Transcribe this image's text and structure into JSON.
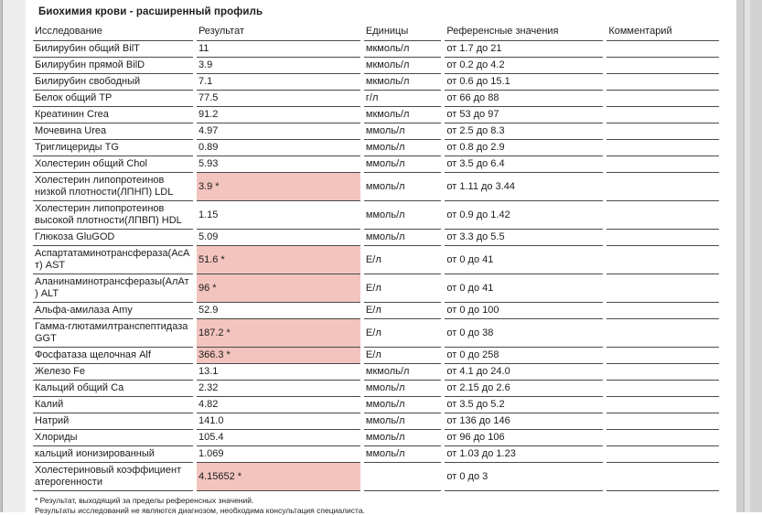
{
  "page": {
    "title": "Биохимия крови - расширенный профиль",
    "footnotes": [
      "* Результат, выходящий за пределы референсных значений.",
      "Результаты исследований не являются диагнозом, необходима консультация специалиста."
    ]
  },
  "colors": {
    "flag_highlight": "#f2c4bd",
    "row_line": "#4a4a4a",
    "text": "#1c1c1c"
  },
  "table": {
    "columns": [
      "Исследование",
      "Результат",
      "Единицы",
      "Референсные значения",
      "Комментарий"
    ],
    "rows": [
      {
        "name": "Билирубин общий BilT",
        "result": "11",
        "flagged": false,
        "units": "мкмоль/л",
        "reference": "от 1.7 до 21",
        "comment": ""
      },
      {
        "name": "Билирубин прямой BilD",
        "result": "3.9",
        "flagged": false,
        "units": "мкмоль/л",
        "reference": "от 0.2 до 4.2",
        "comment": ""
      },
      {
        "name": "Билирубин свободный",
        "result": "7.1",
        "flagged": false,
        "units": "мкмоль/л",
        "reference": "от 0.6 до 15.1",
        "comment": ""
      },
      {
        "name": "Белок общий TP",
        "result": "77.5",
        "flagged": false,
        "units": "г/л",
        "reference": "от 66 до 88",
        "comment": ""
      },
      {
        "name": "Креатинин Crea",
        "result": "91.2",
        "flagged": false,
        "units": "мкмоль/л",
        "reference": "от 53 до 97",
        "comment": ""
      },
      {
        "name": "Мочевина Urea",
        "result": "4.97",
        "flagged": false,
        "units": "ммоль/л",
        "reference": "от 2.5 до 8.3",
        "comment": ""
      },
      {
        "name": "Триглицериды TG",
        "result": "0.89",
        "flagged": false,
        "units": "ммоль/л",
        "reference": "от 0.8 до 2.9",
        "comment": ""
      },
      {
        "name": "Холестерин общий Chol",
        "result": "5.93",
        "flagged": false,
        "units": "ммоль/л",
        "reference": "от 3.5 до 6.4",
        "comment": ""
      },
      {
        "name": "Холестерин липопротеинов низкой плотности(ЛПНП) LDL",
        "result": "3.9 *",
        "flagged": true,
        "units": "ммоль/л",
        "reference": "от 1.11 до 3.44",
        "comment": ""
      },
      {
        "name": "Холестерин липопротеинов высокой плотности(ЛПВП) HDL",
        "result": "1.15",
        "flagged": false,
        "units": "ммоль/л",
        "reference": "от 0.9 до 1.42",
        "comment": ""
      },
      {
        "name": "Глюкоза GluGOD",
        "result": "5.09",
        "flagged": false,
        "units": "ммоль/л",
        "reference": "от 3.3 до 5.5",
        "comment": ""
      },
      {
        "name": "Аспартатаминотрансфераза(АсАт) AST",
        "result": "51.6 *",
        "flagged": true,
        "units": "Е/л",
        "reference": "от 0 до 41",
        "comment": ""
      },
      {
        "name": "Аланинаминотрансферазы(АлАт) ALT",
        "result": "96 *",
        "flagged": true,
        "units": "Е/л",
        "reference": "от 0 до 41",
        "comment": ""
      },
      {
        "name": "Альфа-амилаза Amy",
        "result": "52.9",
        "flagged": false,
        "units": "Е/л",
        "reference": "от 0 до 100",
        "comment": ""
      },
      {
        "name": "Гамма-глютамилтранспептидаза GGT",
        "result": "187.2 *",
        "flagged": true,
        "units": "Е/л",
        "reference": "от 0 до 38",
        "comment": ""
      },
      {
        "name": "Фосфатаза щелочная Alf",
        "result": "366.3 *",
        "flagged": true,
        "units": "Е/л",
        "reference": "от 0 до 258",
        "comment": ""
      },
      {
        "name": "Железо Fe",
        "result": "13.1",
        "flagged": false,
        "units": "мкмоль/л",
        "reference": "от 4.1 до 24.0",
        "comment": ""
      },
      {
        "name": "Кальций общий Ca",
        "result": "2.32",
        "flagged": false,
        "units": "ммоль/л",
        "reference": "от 2.15 до 2.6",
        "comment": ""
      },
      {
        "name": "Калий",
        "result": "4.82",
        "flagged": false,
        "units": "ммоль/л",
        "reference": "от 3.5 до 5.2",
        "comment": ""
      },
      {
        "name": "Натрий",
        "result": "141.0",
        "flagged": false,
        "units": "ммоль/л",
        "reference": "от 136 до 146",
        "comment": ""
      },
      {
        "name": "Хлориды",
        "result": "105.4",
        "flagged": false,
        "units": "ммоль/л",
        "reference": "от 96 до 106",
        "comment": ""
      },
      {
        "name": "кальций ионизированный",
        "result": "1.069",
        "flagged": false,
        "units": "ммоль/л",
        "reference": "от 1.03 до 1.23",
        "comment": ""
      },
      {
        "name": "Холестериновый коэффициент атерогенности",
        "result": "4.15652 *",
        "flagged": true,
        "units": "",
        "reference": "от 0 до 3",
        "comment": ""
      }
    ]
  }
}
